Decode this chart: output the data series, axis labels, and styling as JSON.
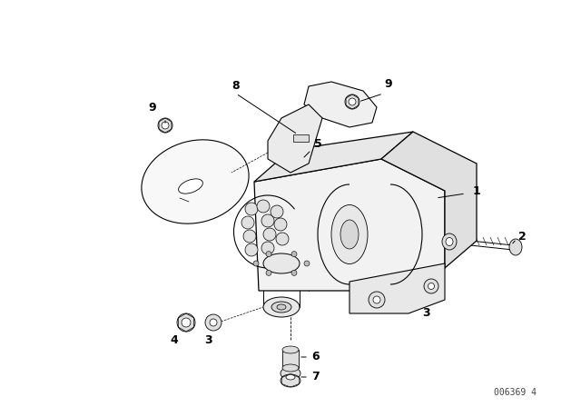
{
  "background_color": "#ffffff",
  "line_color": "#000000",
  "watermark_text": "006369 4",
  "figure_width": 6.4,
  "figure_height": 4.48,
  "dpi": 100
}
